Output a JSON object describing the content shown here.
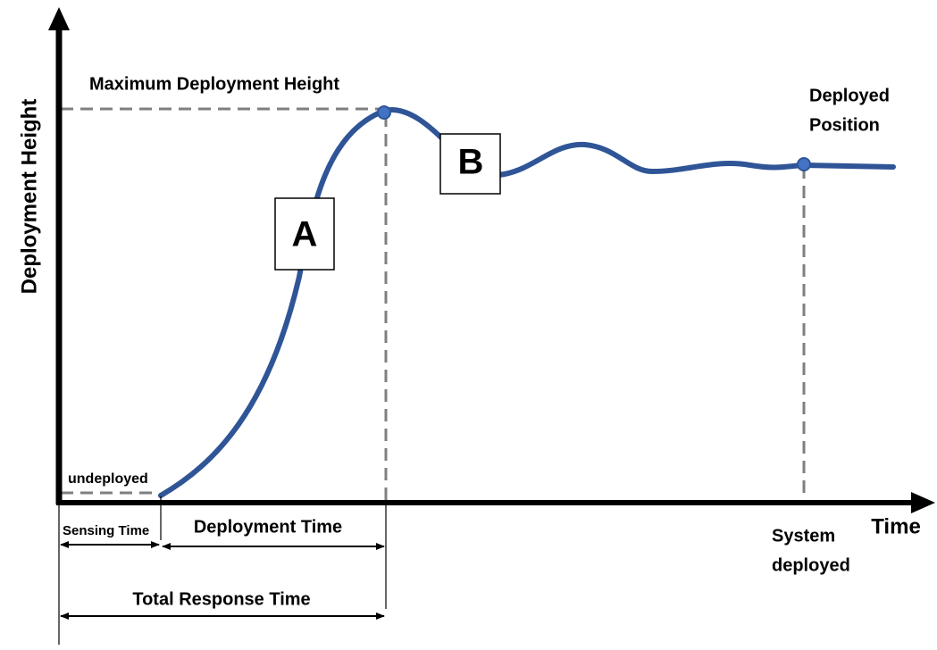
{
  "axes": {
    "y_label": "Deployment Height",
    "x_label": "Time"
  },
  "annotations": {
    "max_height": "Maximum Deployment Height",
    "deployed_position": [
      "Deployed",
      "Position"
    ],
    "undeployed": "undeployed",
    "sensing_time": "Sensing Time",
    "deployment_time": "Deployment Time",
    "system_deployed": [
      "System",
      "deployed"
    ],
    "total_response_time": "Total Response Time"
  },
  "boxes": [
    "A",
    "B"
  ]
}
